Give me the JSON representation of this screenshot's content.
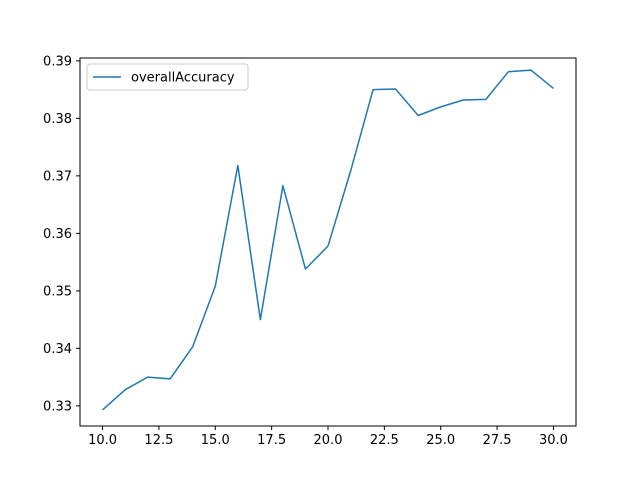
{
  "chart_data": {
    "type": "line",
    "title": "",
    "xlabel": "",
    "ylabel": "",
    "xlim": [
      9.0,
      31.0
    ],
    "ylim": [
      0.3265,
      0.3905
    ],
    "x_ticks": [
      10.0,
      12.5,
      15.0,
      17.5,
      20.0,
      22.5,
      25.0,
      27.5,
      30.0
    ],
    "x_tick_labels": [
      "10.0",
      "12.5",
      "15.0",
      "17.5",
      "20.0",
      "22.5",
      "25.0",
      "27.5",
      "30.0"
    ],
    "y_ticks": [
      0.33,
      0.34,
      0.35,
      0.36,
      0.37,
      0.38,
      0.39
    ],
    "y_tick_labels": [
      "0.33",
      "0.34",
      "0.35",
      "0.36",
      "0.37",
      "0.38",
      "0.39"
    ],
    "grid": false,
    "legend": {
      "position": "top-left"
    },
    "series": [
      {
        "name": "overallAccuracy",
        "color": "#1f77b4",
        "x": [
          10,
          11,
          12,
          13,
          14,
          15,
          16,
          17,
          18,
          19,
          20,
          21,
          22,
          23,
          24,
          25,
          26,
          27,
          28,
          29,
          30
        ],
        "y": [
          0.3293,
          0.3328,
          0.335,
          0.3347,
          0.3403,
          0.3508,
          0.3718,
          0.345,
          0.3683,
          0.3538,
          0.3578,
          0.3708,
          0.385,
          0.3851,
          0.3805,
          0.382,
          0.3832,
          0.3833,
          0.3881,
          0.3884,
          0.3852
        ]
      }
    ]
  }
}
